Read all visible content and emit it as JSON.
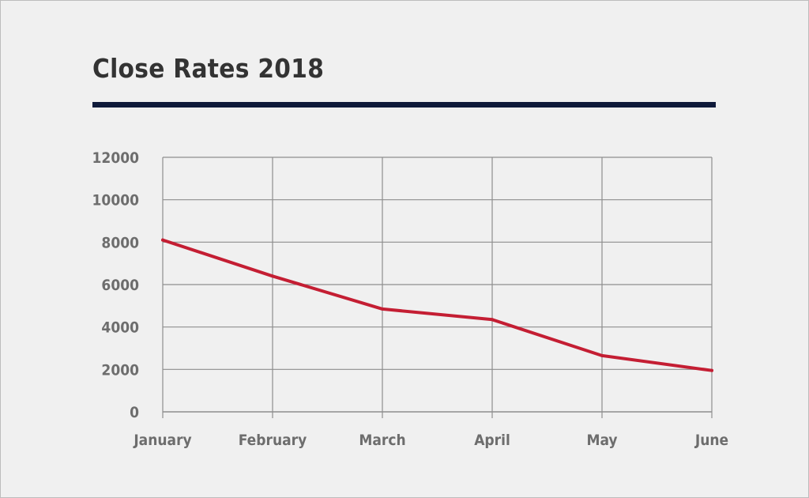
{
  "colors": {
    "background": "#f0f0f0",
    "title_rule": "#0f1a3a",
    "line": "#c41e33",
    "grid": "#8e8e8e",
    "text": "#333333",
    "tick_text": "#6d6d6d"
  },
  "chart_data": {
    "type": "line",
    "title": "Close Rates 2018",
    "xlabel": "",
    "ylabel": "",
    "categories": [
      "January",
      "February",
      "March",
      "April",
      "May",
      "June"
    ],
    "series": [
      {
        "values": [
          8100,
          6400,
          4850,
          4350,
          2650,
          1950
        ]
      }
    ],
    "ylim": [
      0,
      12000
    ],
    "yticks": [
      "0",
      "2000",
      "4000",
      "6000",
      "8000",
      "10000",
      "12000"
    ],
    "grid": true,
    "legend": "none"
  }
}
